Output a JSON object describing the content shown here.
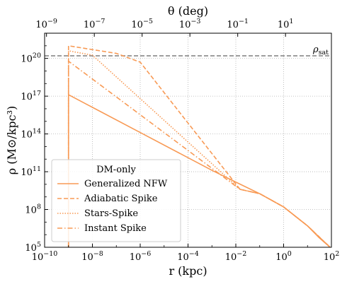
{
  "chart_data": {
    "type": "line",
    "xscale": "log",
    "yscale": "log",
    "xlim": [
      1e-10,
      100
    ],
    "ylim": [
      100000.0,
      1e+22
    ],
    "xlabel": "r (kpc)",
    "ylabel": "ρ (M⊙/kpc³)",
    "top_axis_label": "θ (deg)",
    "grid": true,
    "legend_title": "DM-only",
    "legend_position": "lower-left",
    "x_ticks": [
      {
        "value": 1e-10,
        "base": "10",
        "exp": "−10"
      },
      {
        "value": 1e-08,
        "base": "10",
        "exp": "−8"
      },
      {
        "value": 1e-06,
        "base": "10",
        "exp": "−6"
      },
      {
        "value": 0.0001,
        "base": "10",
        "exp": "−4"
      },
      {
        "value": 0.01,
        "base": "10",
        "exp": "−2"
      },
      {
        "value": 1,
        "base": "10",
        "exp": "0"
      },
      {
        "value": 100,
        "base": "10",
        "exp": "2"
      }
    ],
    "y_ticks": [
      {
        "value": 100000.0,
        "base": "10",
        "exp": "5"
      },
      {
        "value": 100000000.0,
        "base": "10",
        "exp": "8"
      },
      {
        "value": 100000000000.0,
        "base": "10",
        "exp": "11"
      },
      {
        "value": 100000000000000.0,
        "base": "10",
        "exp": "14"
      },
      {
        "value": 1e+17,
        "base": "10",
        "exp": "17"
      },
      {
        "value": 1e+20,
        "base": "10",
        "exp": "20"
      }
    ],
    "top_ticks": [
      {
        "r_value": 1.2e-10,
        "base": "10",
        "exp": "−9"
      },
      {
        "r_value": 1.2e-08,
        "base": "10",
        "exp": "−7"
      },
      {
        "r_value": 1.2e-06,
        "base": "10",
        "exp": "−5"
      },
      {
        "r_value": 0.00012,
        "base": "10",
        "exp": "−3"
      },
      {
        "r_value": 0.012,
        "base": "10",
        "exp": "−1"
      },
      {
        "r_value": 1.2,
        "base": "10",
        "exp": "1"
      }
    ],
    "hline": {
      "y": 1.6e+20,
      "label": "ρsat",
      "label_main": "ρ",
      "label_sub": "sat",
      "color": "#7f7f7f"
    },
    "series": [
      {
        "name": "Generalized NFW",
        "color": "#f89a55",
        "dash": "solid",
        "points": [
          [
            1e-09,
            100000.0
          ],
          [
            1e-09,
            1.3e+17
          ],
          [
            1e-06,
            130000000000000.0
          ],
          [
            0.001,
            130000000000.0
          ],
          [
            0.01,
            15000000000.0
          ],
          [
            0.1,
            1800000000.0
          ],
          [
            1,
            160000000.0
          ],
          [
            10,
            5000000.0
          ],
          [
            30,
            600000.0
          ],
          [
            100,
            80000.0
          ]
        ]
      },
      {
        "name": "Adiabatic Spike",
        "color": "#f89a55",
        "dash": "dashed",
        "points": [
          [
            1e-09,
            100000.0
          ],
          [
            1e-09,
            1e+21
          ],
          [
            1e-07,
            2.5e+20
          ],
          [
            1e-06,
            5e+19
          ],
          [
            0.015,
            4000000000.0
          ],
          [
            0.1,
            1800000000.0
          ],
          [
            1,
            160000000.0
          ],
          [
            10,
            5000000.0
          ],
          [
            100,
            80000.0
          ]
        ]
      },
      {
        "name": "Stars-Spike",
        "color": "#f89a55",
        "dash": "dotted",
        "points": [
          [
            1e-09,
            100000.0
          ],
          [
            1e-09,
            4e+20
          ],
          [
            1e-08,
            1.8e+20
          ],
          [
            0.015,
            4000000000.0
          ],
          [
            0.1,
            1800000000.0
          ],
          [
            1,
            160000000.0
          ],
          [
            10,
            5000000.0
          ],
          [
            100,
            80000.0
          ]
        ]
      },
      {
        "name": "Instant Spike",
        "color": "#f89a55",
        "dash": "dashdot",
        "points": [
          [
            1e-09,
            100000.0
          ],
          [
            1e-09,
            6e+19
          ],
          [
            0.015,
            4000000000.0
          ],
          [
            0.1,
            1800000000.0
          ],
          [
            1,
            160000000.0
          ],
          [
            10,
            5000000.0
          ],
          [
            100,
            80000.0
          ]
        ]
      }
    ]
  }
}
